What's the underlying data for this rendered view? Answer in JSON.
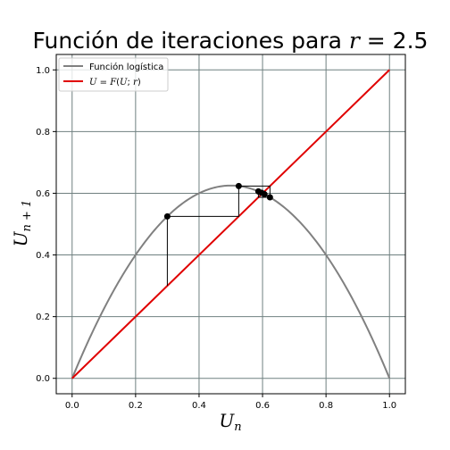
{
  "chart_data": {
    "type": "line",
    "title_prefix": "Función de iteraciones para ",
    "title_var": "r",
    "title_suffix": " = 2.5",
    "xlabel_base": "U",
    "xlabel_sub": "n",
    "ylabel_base": "U",
    "ylabel_sub": "n + 1",
    "xlim": [
      -0.05,
      1.05
    ],
    "ylim": [
      -0.05,
      1.05
    ],
    "x_ticks": [
      0.0,
      0.2,
      0.4,
      0.6,
      0.8,
      1.0
    ],
    "x_tick_labels": [
      "0.0",
      "0.2",
      "0.4",
      "0.6",
      "0.8",
      "1.0"
    ],
    "y_ticks": [
      0.0,
      0.2,
      0.4,
      0.6,
      0.8,
      1.0
    ],
    "y_tick_labels": [
      "0.0",
      "0.2",
      "0.4",
      "0.6",
      "0.8",
      "1.0"
    ],
    "grid": true,
    "legend_position": "top-left",
    "r": 2.5,
    "series": [
      {
        "name": "Función logística",
        "function": "r*U*(1-U)",
        "color": "#808080"
      },
      {
        "name": "U = F(U; r)",
        "function": "U",
        "color": "#e00000"
      }
    ],
    "cobweb": {
      "color": "#000000",
      "points_x": [
        0.3,
        0.525,
        0.6234,
        0.5869,
        0.6061,
        0.5968
      ],
      "points_y": [
        0.525,
        0.6234,
        0.5869,
        0.6061,
        0.5968,
        0.6017
      ]
    },
    "legend": {
      "items": [
        {
          "label": "Función logística",
          "color": "#808080"
        },
        {
          "label_math_1": "U",
          "label_eq": " = ",
          "label_math_2": "F",
          "label_rest_1": "(",
          "label_math_3": "U",
          "label_rest_2": "; ",
          "label_math_4": "r",
          "label_rest_3": ")",
          "color": "#e00000"
        }
      ]
    }
  }
}
